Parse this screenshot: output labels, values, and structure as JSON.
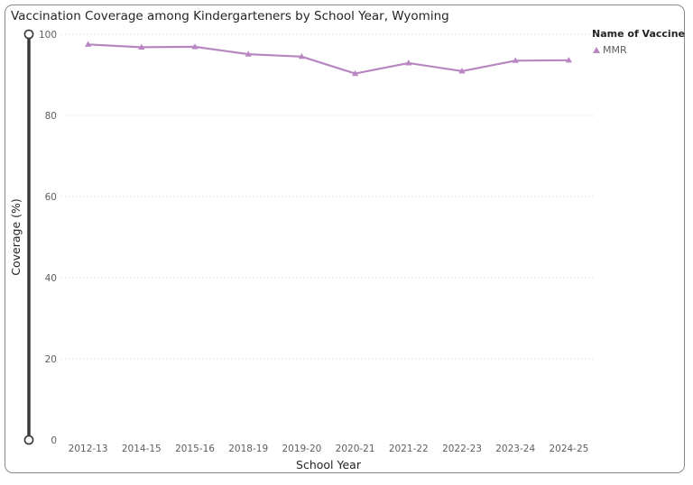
{
  "chart_data": {
    "type": "line",
    "title": "Vaccination Coverage among Kindergarteners by School Year, Wyoming",
    "xlabel": "School Year",
    "ylabel": "Coverage (%)",
    "ylim": [
      0,
      100
    ],
    "yticks": [
      0,
      20,
      40,
      60,
      80,
      100
    ],
    "grid": true,
    "legend_title": "Name of Vaccine",
    "legend_position": "top-right",
    "categories": [
      "2012-13",
      "2014-15",
      "2015-16",
      "2018-19",
      "2019-20",
      "2020-21",
      "2021-22",
      "2022-23",
      "2023-24",
      "2024-25"
    ],
    "series": [
      {
        "name": "MMR",
        "color": "#b887c2",
        "marker": "triangle",
        "values": [
          97.5,
          96.8,
          96.9,
          95.1,
          94.5,
          90.3,
          92.9,
          90.9,
          93.5,
          93.6
        ]
      }
    ]
  }
}
